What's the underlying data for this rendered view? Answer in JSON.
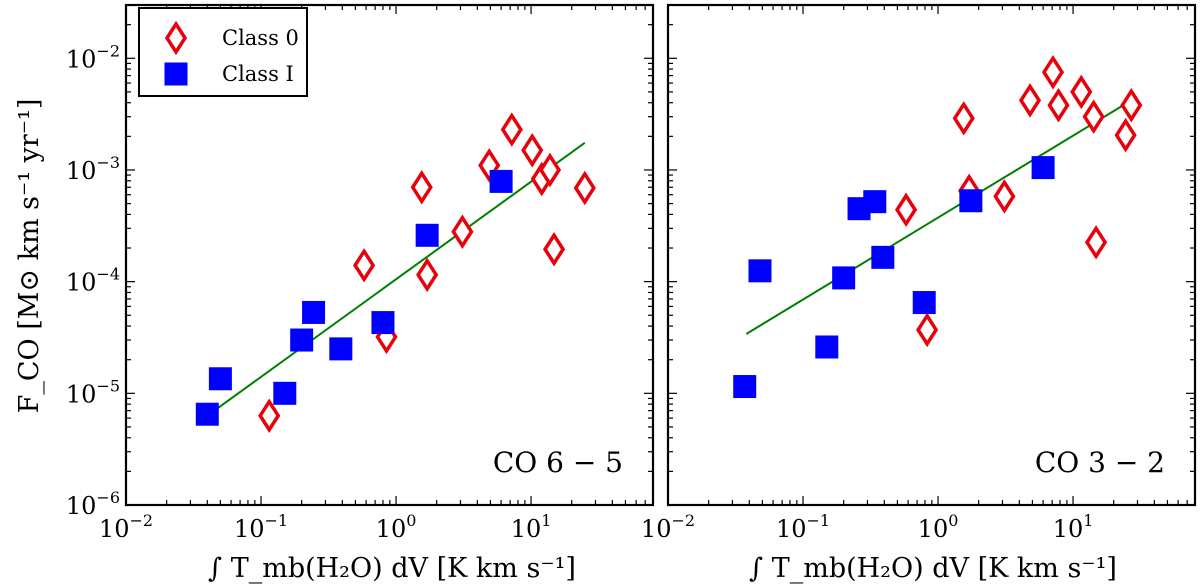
{
  "chart_data": {
    "type": "scatter",
    "x_scale": "log",
    "y_scale": "log",
    "xlabel": "∫ T_mb(H₂O) dV [K km s⁻¹]",
    "ylabel": "F_CO [M⊙ km s⁻¹ yr⁻¹]",
    "xlim": [
      0.01,
      80
    ],
    "ylim": [
      1e-06,
      0.03
    ],
    "x_ticks": [
      {
        "value": 0.01,
        "base": "10",
        "exp": "−2"
      },
      {
        "value": 0.1,
        "base": "10",
        "exp": "−1"
      },
      {
        "value": 1,
        "base": "10",
        "exp": "0"
      },
      {
        "value": 10,
        "base": "10",
        "exp": "1"
      }
    ],
    "y_ticks": [
      {
        "value": 1e-06,
        "base": "10",
        "exp": "−6"
      },
      {
        "value": 1e-05,
        "base": "10",
        "exp": "−5"
      },
      {
        "value": 0.0001,
        "base": "10",
        "exp": "−4"
      },
      {
        "value": 0.001,
        "base": "10",
        "exp": "−3"
      },
      {
        "value": 0.01,
        "base": "10",
        "exp": "−2"
      }
    ],
    "legend": {
      "position": "top-left",
      "entries": [
        {
          "name": "Class 0",
          "marker": "diamond",
          "color": "#e8000b"
        },
        {
          "name": "Class I",
          "marker": "square",
          "color": "#0000ff"
        }
      ]
    },
    "panels": [
      {
        "label": "CO 6 − 5",
        "series": [
          {
            "name": "Class 0",
            "points": [
              [
                0.115,
                6.3e-06
              ],
              [
                0.58,
                0.00014
              ],
              [
                0.85,
                3.2e-05
              ],
              [
                1.55,
                0.0007
              ],
              [
                1.7,
                0.000115
              ],
              [
                3.1,
                0.00028
              ],
              [
                4.9,
                0.0011
              ],
              [
                7.2,
                0.0023
              ],
              [
                10.2,
                0.0015
              ],
              [
                12.0,
                0.00083
              ],
              [
                13.8,
                0.001
              ],
              [
                14.8,
                0.000195
              ],
              [
                25.0,
                0.00069
              ]
            ]
          },
          {
            "name": "Class I",
            "points": [
              [
                0.04,
                6.5e-06
              ],
              [
                0.05,
                1.35e-05
              ],
              [
                0.15,
                1e-05
              ],
              [
                0.2,
                3e-05
              ],
              [
                0.245,
                5.3e-05
              ],
              [
                0.39,
                2.5e-05
              ],
              [
                0.8,
                4.3e-05
              ],
              [
                1.7,
                0.00026
              ],
              [
                6.0,
                0.00079
              ]
            ]
          }
        ],
        "fit": [
          [
            0.04,
            6.3e-06
          ],
          [
            25,
            0.00175
          ]
        ]
      },
      {
        "label": "CO 3 − 2",
        "series": [
          {
            "name": "Class 0",
            "points": [
              [
                0.58,
                0.00044
              ],
              [
                0.83,
                3.7e-05
              ],
              [
                1.55,
                0.0029
              ],
              [
                1.7,
                0.00065
              ],
              [
                3.1,
                0.00058
              ],
              [
                4.8,
                0.0042
              ],
              [
                7.1,
                0.0075
              ],
              [
                7.8,
                0.0038
              ],
              [
                11.5,
                0.005
              ],
              [
                14.2,
                0.003
              ],
              [
                14.8,
                0.000225
              ],
              [
                24.5,
                0.00205
              ],
              [
                27.0,
                0.0038
              ]
            ]
          },
          {
            "name": "Class I",
            "points": [
              [
                0.037,
                1.15e-05
              ],
              [
                0.048,
                0.000125
              ],
              [
                0.15,
                2.6e-05
              ],
              [
                0.2,
                0.000108
              ],
              [
                0.26,
                0.00045
              ],
              [
                0.34,
                0.00052
              ],
              [
                0.39,
                0.000165
              ],
              [
                0.79,
                6.5e-05
              ],
              [
                1.75,
                0.00053
              ],
              [
                6.0,
                0.00105
              ]
            ]
          }
        ],
        "fit": [
          [
            0.038,
            3.4e-05
          ],
          [
            27,
            0.0042
          ]
        ]
      }
    ]
  }
}
